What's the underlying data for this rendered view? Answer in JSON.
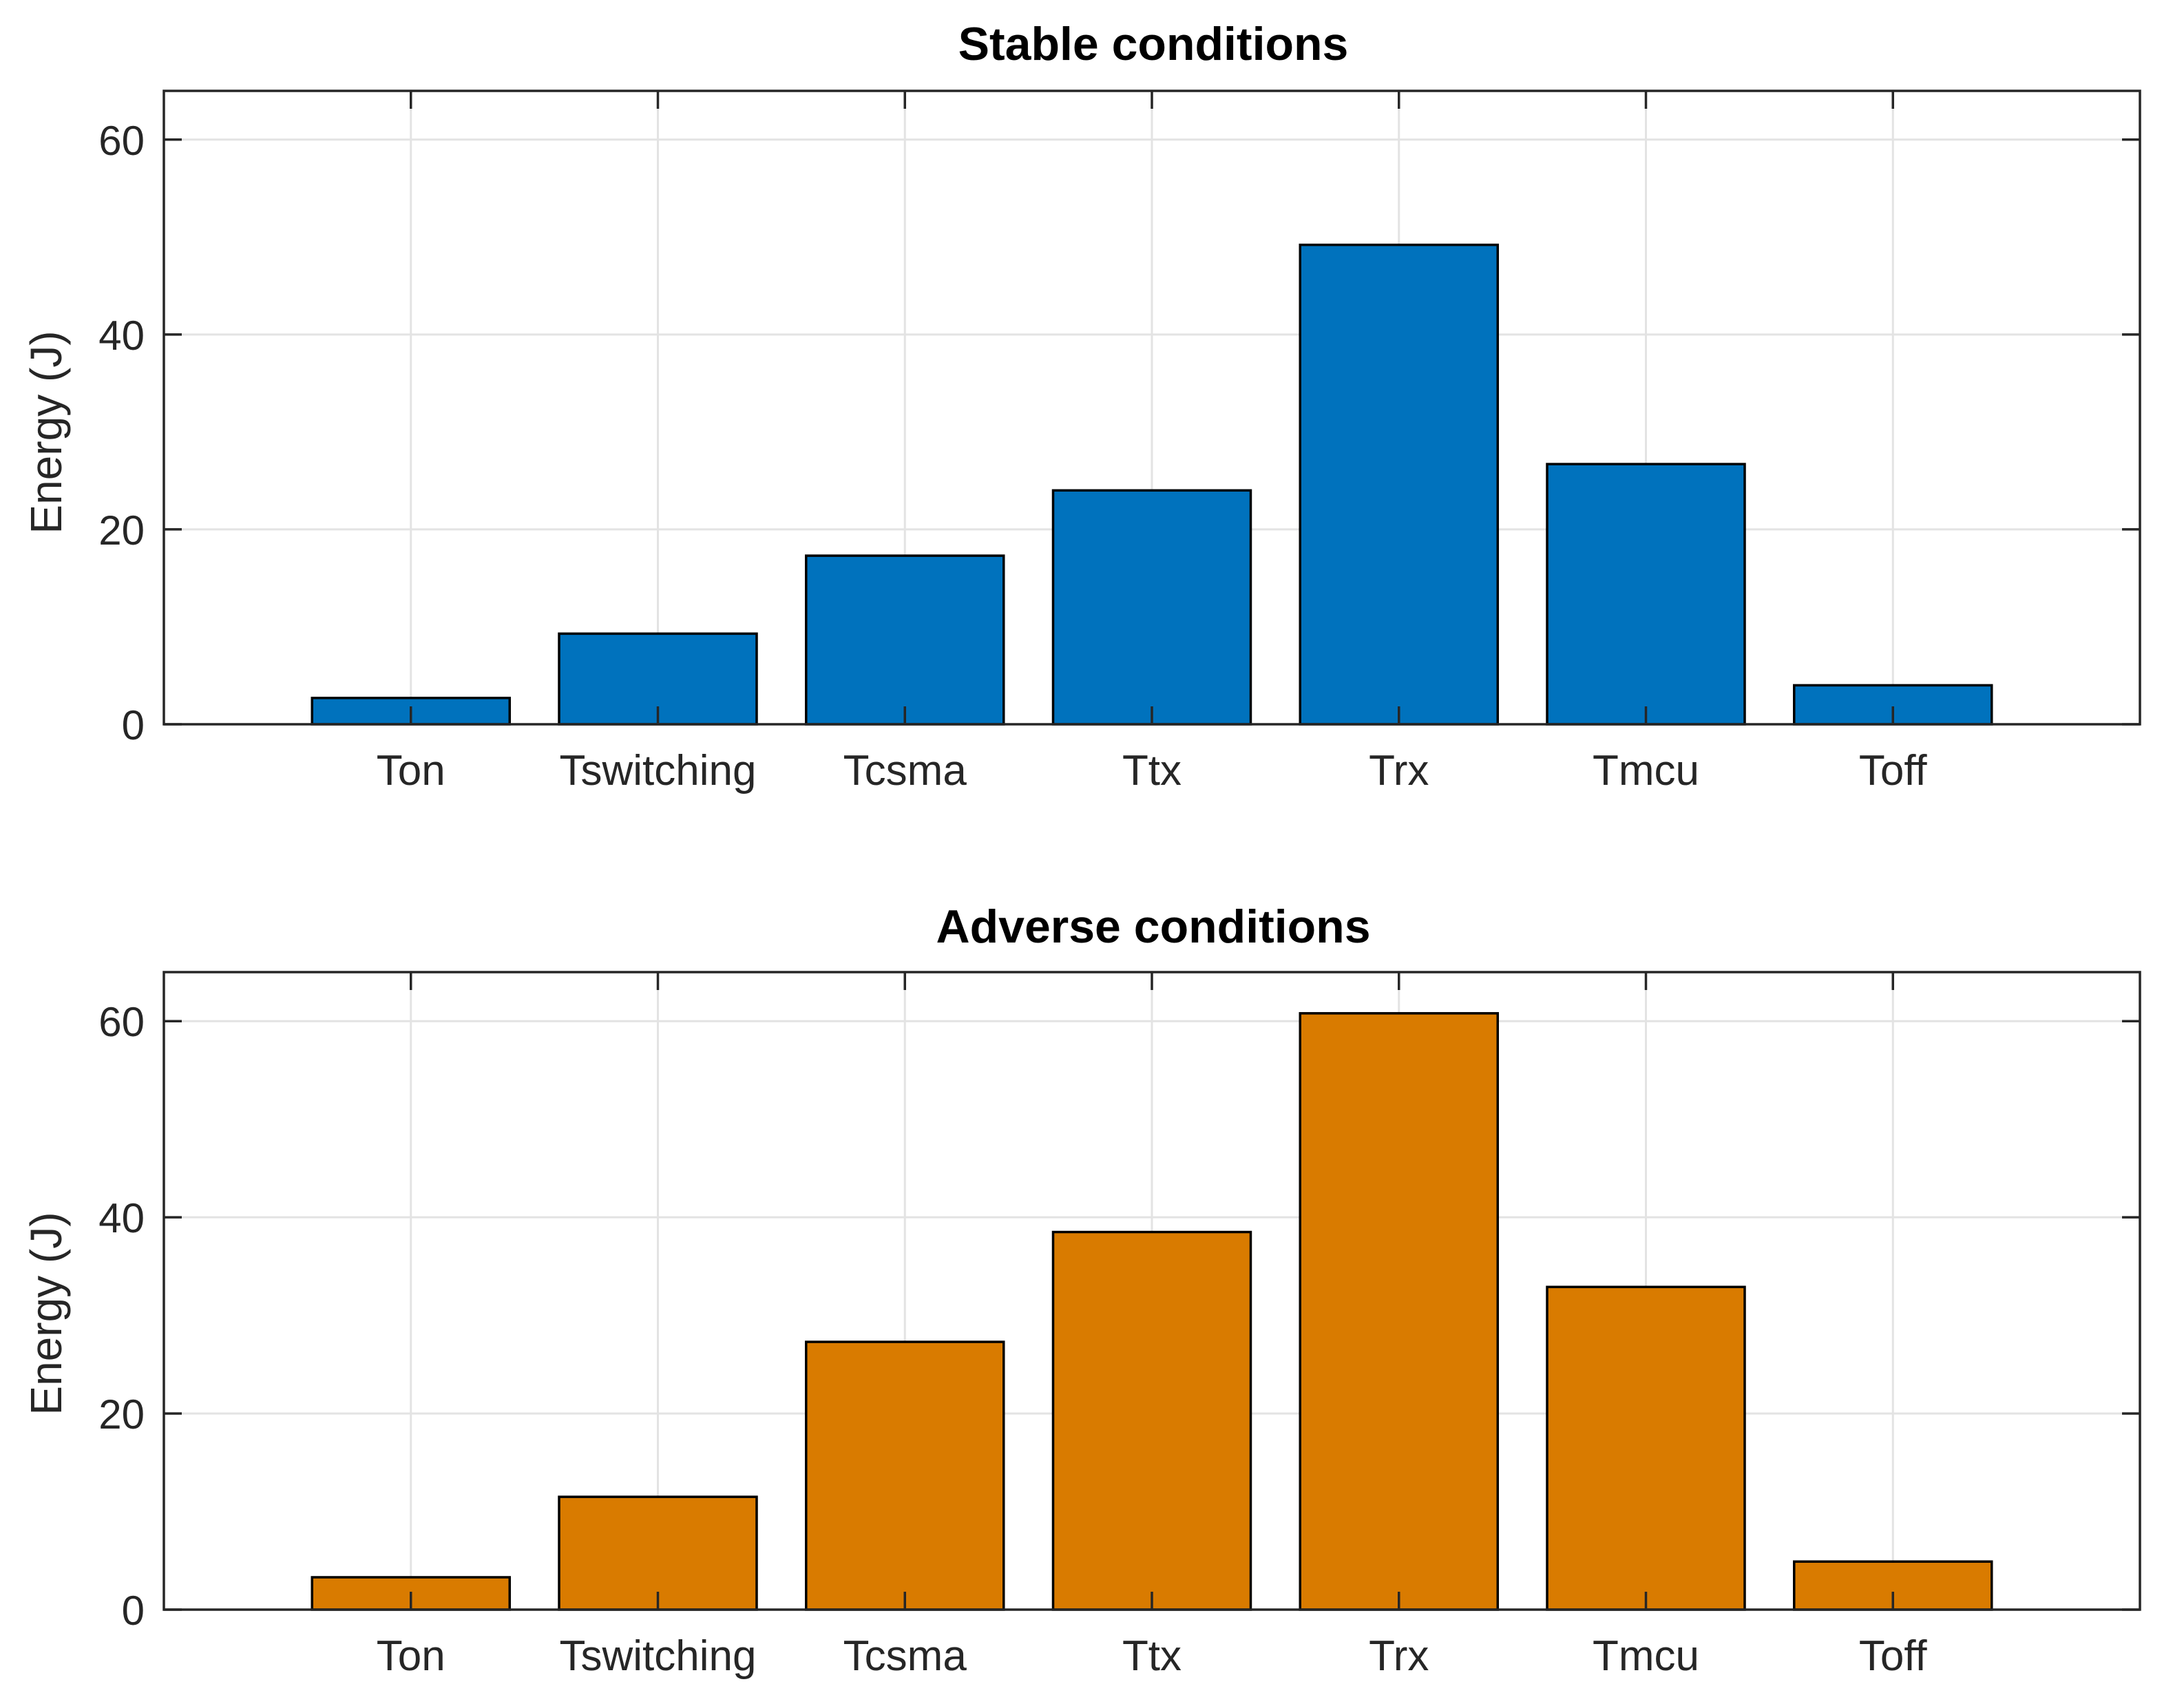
{
  "chart_data": [
    {
      "type": "bar",
      "title": "Stable conditions",
      "xlabel": "",
      "ylabel": "Energy (J)",
      "ylim": [
        0,
        65
      ],
      "yticks": [
        0,
        20,
        40,
        60
      ],
      "grid": true,
      "categories": [
        "Ton",
        "Tswitching",
        "Tcsma",
        "Ttx",
        "Trx",
        "Tmcu",
        "Toff"
      ],
      "values": [
        2.7,
        9.3,
        17.3,
        24.0,
        49.2,
        26.7,
        4.0
      ],
      "color": "#0072BD"
    },
    {
      "type": "bar",
      "title": "Adverse conditions",
      "xlabel": "",
      "ylabel": "Energy (J)",
      "ylim": [
        0,
        65
      ],
      "yticks": [
        0,
        20,
        40,
        60
      ],
      "grid": true,
      "categories": [
        "Ton",
        "Tswitching",
        "Tcsma",
        "Ttx",
        "Trx",
        "Tmcu",
        "Toff"
      ],
      "values": [
        3.3,
        11.5,
        27.3,
        38.5,
        60.8,
        32.9,
        4.9
      ],
      "color": "#D97B00"
    }
  ]
}
